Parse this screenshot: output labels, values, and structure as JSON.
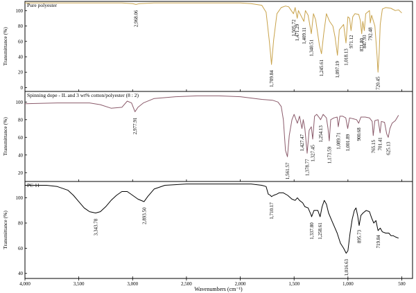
{
  "chart_data": {
    "type": "line",
    "xlabel": "Wavenumbers (cm⁻¹)",
    "xlim": [
      4000,
      400
    ],
    "x_ticks": [
      {
        "value": 4000,
        "label": "4,000"
      },
      {
        "value": 3500,
        "label": "3,500"
      },
      {
        "value": 3000,
        "label": "3,000"
      },
      {
        "value": 2500,
        "label": "2,500"
      },
      {
        "value": 2000,
        "label": "2,000"
      },
      {
        "value": 1500,
        "label": "1,500"
      },
      {
        "value": 1000,
        "label": "1,000"
      },
      {
        "value": 500,
        "label": "500"
      }
    ],
    "panels": [
      {
        "title": "Pure polyester",
        "ylabel": "Transmittance (%)",
        "ylim": [
          -5,
          112
        ],
        "y_ticks": [
          0,
          20,
          40,
          60,
          80,
          100
        ],
        "color": "#c8a24a",
        "points": [
          [
            4000,
            110
          ],
          [
            3800,
            110
          ],
          [
            3600,
            110
          ],
          [
            3400,
            110
          ],
          [
            3200,
            110
          ],
          [
            3100,
            110
          ],
          [
            3000,
            109
          ],
          [
            2968,
            108
          ],
          [
            2940,
            109
          ],
          [
            2800,
            110
          ],
          [
            2500,
            110
          ],
          [
            2200,
            110
          ],
          [
            2000,
            110
          ],
          [
            1900,
            109
          ],
          [
            1800,
            107
          ],
          [
            1760,
            98
          ],
          [
            1730,
            60
          ],
          [
            1709.84,
            30
          ],
          [
            1690,
            62
          ],
          [
            1660,
            96
          ],
          [
            1620,
            104
          ],
          [
            1580,
            106
          ],
          [
            1550,
            105
          ],
          [
            1505.72,
            96
          ],
          [
            1490,
            104
          ],
          [
            1471.29,
            90
          ],
          [
            1460,
            100
          ],
          [
            1409.11,
            86
          ],
          [
            1395,
            100
          ],
          [
            1370,
            94
          ],
          [
            1340.51,
            70
          ],
          [
            1320,
            96
          ],
          [
            1300,
            88
          ],
          [
            1265,
            55
          ],
          [
            1245.61,
            44
          ],
          [
            1225,
            70
          ],
          [
            1200,
            96
          ],
          [
            1170,
            86
          ],
          [
            1140,
            80
          ],
          [
            1120,
            66
          ],
          [
            1097.19,
            42
          ],
          [
            1080,
            75
          ],
          [
            1040,
            82
          ],
          [
            1018.13,
            58
          ],
          [
            1000,
            92
          ],
          [
            985,
            90
          ],
          [
            971.12,
            74
          ],
          [
            955,
            92
          ],
          [
            935,
            96
          ],
          [
            900,
            95
          ],
          [
            885,
            87
          ],
          [
            871.8,
            70
          ],
          [
            862,
            86
          ],
          [
            847.93,
            74
          ],
          [
            835,
            96
          ],
          [
            800,
            100
          ],
          [
            792.48,
            84
          ],
          [
            780,
            94
          ],
          [
            750,
            80
          ],
          [
            730,
            42
          ],
          [
            720.45,
            20
          ],
          [
            710,
            45
          ],
          [
            700,
            82
          ],
          [
            680,
            102
          ],
          [
            650,
            104
          ],
          [
            600,
            103
          ],
          [
            560,
            100
          ],
          [
            530,
            101
          ],
          [
            500,
            97
          ]
        ],
        "peaks": [
          {
            "x": 2968.06,
            "label": "2,968.06"
          },
          {
            "x": 1709.84,
            "label": "1,709.84"
          },
          {
            "x": 1505.72,
            "label": "1,505.72"
          },
          {
            "x": 1471.29,
            "label": "1,471.29"
          },
          {
            "x": 1409.11,
            "label": "1,409.11"
          },
          {
            "x": 1340.51,
            "label": "1,340.51"
          },
          {
            "x": 1245.61,
            "label": "1,245.61"
          },
          {
            "x": 1097.19,
            "label": "1,097.19"
          },
          {
            "x": 1018.13,
            "label": "1,018.13"
          },
          {
            "x": 971.12,
            "label": "971.12"
          },
          {
            "x": 871.8,
            "label": "871.80"
          },
          {
            "x": 847.93,
            "label": "847.93"
          },
          {
            "x": 792.48,
            "label": "792.48"
          },
          {
            "x": 720.45,
            "label": "720.45"
          }
        ]
      },
      {
        "title": "Spinning dope - IL and 3 wt% cotton/polyester (8 : 2)",
        "ylabel": "Transmittance (%)",
        "ylim": [
          10,
          112
        ],
        "y_ticks": [
          20,
          40,
          60,
          80,
          100
        ],
        "color": "#8a5a6a",
        "points": [
          [
            4000,
            98
          ],
          [
            3700,
            99
          ],
          [
            3500,
            99
          ],
          [
            3400,
            99
          ],
          [
            3300,
            97
          ],
          [
            3200,
            93
          ],
          [
            3100,
            94
          ],
          [
            3050,
            101
          ],
          [
            3010,
            99
          ],
          [
            2977.91,
            89
          ],
          [
            2950,
            94
          ],
          [
            2900,
            99
          ],
          [
            2800,
            104
          ],
          [
            2600,
            106
          ],
          [
            2400,
            107
          ],
          [
            2200,
            107
          ],
          [
            2000,
            106
          ],
          [
            1800,
            103
          ],
          [
            1700,
            102
          ],
          [
            1650,
            100
          ],
          [
            1620,
            95
          ],
          [
            1600,
            80
          ],
          [
            1580,
            45
          ],
          [
            1561.57,
            38
          ],
          [
            1545,
            62
          ],
          [
            1520,
            80
          ],
          [
            1500,
            86
          ],
          [
            1470,
            76
          ],
          [
            1450,
            84
          ],
          [
            1427.47,
            70
          ],
          [
            1415,
            80
          ],
          [
            1400,
            70
          ],
          [
            1378.77,
            42
          ],
          [
            1360,
            68
          ],
          [
            1340,
            72
          ],
          [
            1327.45,
            58
          ],
          [
            1310,
            84
          ],
          [
            1290,
            86
          ],
          [
            1265,
            82
          ],
          [
            1254.13,
            80
          ],
          [
            1230,
            86
          ],
          [
            1200,
            82
          ],
          [
            1185,
            70
          ],
          [
            1173.59,
            56
          ],
          [
            1160,
            80
          ],
          [
            1130,
            82
          ],
          [
            1100,
            83
          ],
          [
            1089.71,
            72
          ],
          [
            1075,
            84
          ],
          [
            1050,
            84
          ],
          [
            1020,
            82
          ],
          [
            1001.89,
            70
          ],
          [
            985,
            82
          ],
          [
            950,
            81
          ],
          [
            920,
            80
          ],
          [
            900.68,
            76
          ],
          [
            880,
            83
          ],
          [
            840,
            83
          ],
          [
            800,
            82
          ],
          [
            775,
            78
          ],
          [
            765.15,
            62
          ],
          [
            750,
            79
          ],
          [
            720,
            80
          ],
          [
            701.41,
            65
          ],
          [
            690,
            78
          ],
          [
            660,
            77
          ],
          [
            640,
            64
          ],
          [
            625.13,
            60
          ],
          [
            610,
            70
          ],
          [
            590,
            76
          ],
          [
            560,
            79
          ],
          [
            530,
            85
          ]
        ],
        "peaks": [
          {
            "x": 2977.91,
            "label": "2,977.91"
          },
          {
            "x": 1561.57,
            "label": "1,561.57"
          },
          {
            "x": 1427.47,
            "label": "1,427.47"
          },
          {
            "x": 1378.77,
            "label": "1,378.77"
          },
          {
            "x": 1327.45,
            "label": "1,327.45"
          },
          {
            "x": 1254.13,
            "label": "1,254.13"
          },
          {
            "x": 1173.59,
            "label": "1,173.59"
          },
          {
            "x": 1089.71,
            "label": "1,089.71"
          },
          {
            "x": 1001.89,
            "label": "1,001.89"
          },
          {
            "x": 900.68,
            "label": "900.68"
          },
          {
            "x": 765.15,
            "label": "765.15"
          },
          {
            "x": 701.41,
            "label": "701.41"
          },
          {
            "x": 625.13,
            "label": "625.13"
          }
        ]
      },
      {
        "title": "PC 11",
        "ylabel": "Transmittance (%)",
        "ylim": [
          36,
          113
        ],
        "y_ticks": [
          40,
          60,
          80,
          100
        ],
        "color": "#000000",
        "points": [
          [
            4000,
            110
          ],
          [
            3800,
            110
          ],
          [
            3700,
            109
          ],
          [
            3600,
            106
          ],
          [
            3550,
            102
          ],
          [
            3500,
            97
          ],
          [
            3450,
            92
          ],
          [
            3400,
            89
          ],
          [
            3343.78,
            88
          ],
          [
            3300,
            89
          ],
          [
            3250,
            93
          ],
          [
            3200,
            98
          ],
          [
            3150,
            102
          ],
          [
            3100,
            105
          ],
          [
            3050,
            105
          ],
          [
            3000,
            102
          ],
          [
            2950,
            99
          ],
          [
            2893.5,
            97
          ],
          [
            2860,
            101
          ],
          [
            2800,
            107
          ],
          [
            2700,
            110
          ],
          [
            2500,
            111
          ],
          [
            2300,
            111
          ],
          [
            2100,
            111
          ],
          [
            1900,
            111
          ],
          [
            1800,
            110
          ],
          [
            1760,
            109
          ],
          [
            1740,
            103
          ],
          [
            1720,
            102
          ],
          [
            1710.17,
            101
          ],
          [
            1690,
            102
          ],
          [
            1660,
            103
          ],
          [
            1640,
            104
          ],
          [
            1600,
            104
          ],
          [
            1560,
            102
          ],
          [
            1520,
            99
          ],
          [
            1490,
            98
          ],
          [
            1470,
            100
          ],
          [
            1450,
            98
          ],
          [
            1420,
            96
          ],
          [
            1400,
            93
          ],
          [
            1370,
            92
          ],
          [
            1340,
            86
          ],
          [
            1337.8,
            85
          ],
          [
            1315,
            90
          ],
          [
            1280,
            90
          ],
          [
            1258.61,
            85
          ],
          [
            1240,
            93
          ],
          [
            1220,
            98
          ],
          [
            1200,
            95
          ],
          [
            1180,
            88
          ],
          [
            1150,
            82
          ],
          [
            1120,
            76
          ],
          [
            1100,
            72
          ],
          [
            1070,
            64
          ],
          [
            1040,
            60
          ],
          [
            1016.63,
            56
          ],
          [
            1000,
            58
          ],
          [
            980,
            72
          ],
          [
            960,
            83
          ],
          [
            940,
            90
          ],
          [
            925,
            92
          ],
          [
            910,
            86
          ],
          [
            895.73,
            78
          ],
          [
            880,
            86
          ],
          [
            860,
            88
          ],
          [
            830,
            90
          ],
          [
            800,
            89
          ],
          [
            780,
            84
          ],
          [
            760,
            80
          ],
          [
            740,
            82
          ],
          [
            725,
            76
          ],
          [
            719.84,
            74
          ],
          [
            700,
            76
          ],
          [
            680,
            73
          ],
          [
            650,
            72
          ],
          [
            620,
            72
          ],
          [
            600,
            70
          ],
          [
            580,
            70
          ],
          [
            560,
            69
          ],
          [
            530,
            68
          ]
        ],
        "peaks": [
          {
            "x": 3343.78,
            "label": "3,343.78"
          },
          {
            "x": 2893.5,
            "label": "2,893.50"
          },
          {
            "x": 1710.17,
            "label": "1,710.17"
          },
          {
            "x": 1337.8,
            "label": "1,337.80"
          },
          {
            "x": 1258.61,
            "label": "1,258.61"
          },
          {
            "x": 1016.63,
            "label": "1,016.63"
          },
          {
            "x": 895.73,
            "label": "895.73"
          },
          {
            "x": 719.84,
            "label": "719.84"
          }
        ]
      }
    ]
  }
}
